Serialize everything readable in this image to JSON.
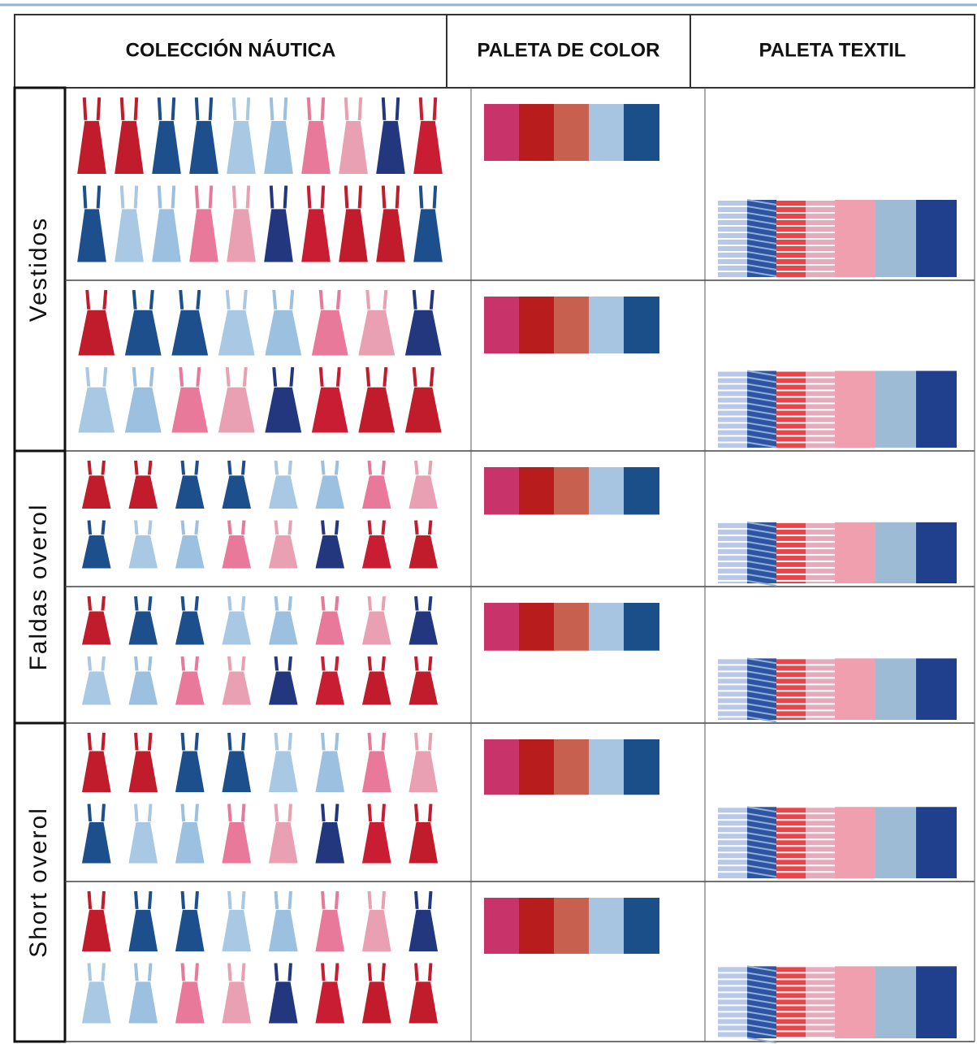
{
  "header": {
    "columns": [
      "COLECCIÓN NÁUTICA",
      "PALETA DE COLOR",
      "PALETA TEXTIL"
    ]
  },
  "groups": [
    {
      "label": "Vestidos"
    },
    {
      "label": "Faldas overol"
    },
    {
      "label": "Short overol"
    }
  ]
}
